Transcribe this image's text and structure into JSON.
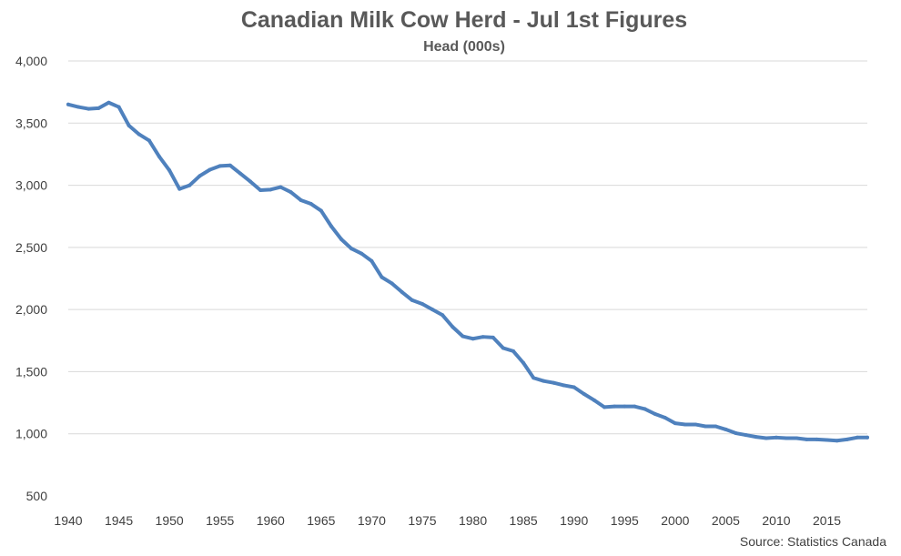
{
  "chart": {
    "title": "Canadian Milk Cow Herd - Jul 1st Figures",
    "subtitle": "Head (000s)",
    "source": "Source: Statistics Canada"
  },
  "colors": {
    "series": "#4F81BD",
    "gridline": "#D9D9D9",
    "axis_text": "#404040",
    "title_text": "#595959"
  },
  "chart_data": {
    "type": "line",
    "title": "Canadian Milk Cow Herd - Jul 1st Figures",
    "subtitle": "Head (000s)",
    "xlabel": "",
    "ylabel": "",
    "xlim": [
      1940,
      2019
    ],
    "ylim": [
      500,
      4000
    ],
    "y_ticks": [
      500,
      1000,
      1500,
      2000,
      2500,
      3000,
      3500,
      4000
    ],
    "y_tick_labels": [
      "500",
      "1,000",
      "1,500",
      "2,000",
      "2,500",
      "3,000",
      "3,500",
      "4,000"
    ],
    "x_ticks": [
      1940,
      1945,
      1950,
      1955,
      1960,
      1965,
      1970,
      1975,
      1980,
      1985,
      1990,
      1995,
      2000,
      2005,
      2010,
      2015
    ],
    "x_tick_labels": [
      "1940",
      "1945",
      "1950",
      "1955",
      "1960",
      "1965",
      "1970",
      "1975",
      "1980",
      "1985",
      "1990",
      "1995",
      "2000",
      "2005",
      "2010",
      "2015"
    ],
    "grid": "horizontal",
    "legend": "none",
    "series": [
      {
        "x": [
          1940,
          1941,
          1942,
          1943,
          1944,
          1945,
          1946,
          1947,
          1948,
          1949,
          1950,
          1951,
          1952,
          1953,
          1954,
          1955,
          1956,
          1957,
          1958,
          1959,
          1960,
          1961,
          1962,
          1963,
          1964,
          1965,
          1966,
          1967,
          1968,
          1969,
          1970,
          1971,
          1972,
          1973,
          1974,
          1975,
          1976,
          1977,
          1978,
          1979,
          1980,
          1981,
          1982,
          1983,
          1984,
          1985,
          1986,
          1987,
          1988,
          1989,
          1990,
          1991,
          1992,
          1993,
          1994,
          1995,
          1996,
          1997,
          1998,
          1999,
          2000,
          2001,
          2002,
          2003,
          2004,
          2005,
          2006,
          2007,
          2008,
          2009,
          2010,
          2011,
          2012,
          2013,
          2014,
          2015,
          2016,
          2017,
          2018,
          2019
        ],
        "values": [
          3650,
          3630,
          3615,
          3620,
          3665,
          3630,
          3480,
          3410,
          3360,
          3230,
          3120,
          2970,
          3000,
          3075,
          3125,
          3155,
          3160,
          3095,
          3030,
          2960,
          2965,
          2985,
          2945,
          2880,
          2850,
          2795,
          2670,
          2565,
          2490,
          2450,
          2390,
          2260,
          2210,
          2140,
          2075,
          2045,
          2000,
          1955,
          1860,
          1785,
          1765,
          1780,
          1775,
          1690,
          1665,
          1570,
          1450,
          1425,
          1410,
          1390,
          1375,
          1320,
          1270,
          1215,
          1220,
          1220,
          1220,
          1200,
          1160,
          1130,
          1085,
          1075,
          1075,
          1060,
          1060,
          1035,
          1005,
          990,
          975,
          965,
          970,
          965,
          965,
          955,
          955,
          950,
          945,
          955,
          970,
          970
        ]
      }
    ]
  }
}
